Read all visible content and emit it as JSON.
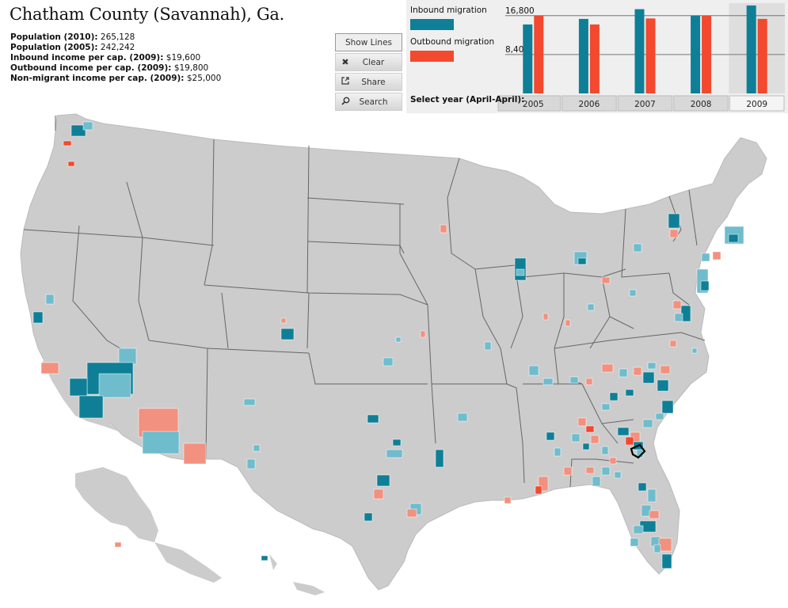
{
  "page": {
    "title": "Chatham County (Savannah), Ga."
  },
  "stats": [
    {
      "label": "Population (2010):",
      "value": "265,128"
    },
    {
      "label": "Population (2005):",
      "value": "242,242"
    },
    {
      "label": "Inbound income per cap. (2009):",
      "value": "$19,600"
    },
    {
      "label": "Outbound income per cap. (2009):",
      "value": "$19,800"
    },
    {
      "label": "Non-migrant income per cap. (2009):",
      "value": "$25,000"
    }
  ],
  "buttons": {
    "show_lines": "Show Lines",
    "clear": "Clear",
    "share": "Share",
    "search": "Search"
  },
  "legend": {
    "inbound": "Inbound migration",
    "outbound": "Outbound migration",
    "inbound_color": "#0e7f96",
    "outbound_color": "#f2492f"
  },
  "year_select": {
    "label": "Select year (April-April):",
    "selected": "2009"
  },
  "chart_data": {
    "type": "bar",
    "categories": [
      "2005",
      "2006",
      "2007",
      "2008",
      "2009"
    ],
    "series": [
      {
        "name": "Inbound migration",
        "values": [
          14900,
          16100,
          18200,
          16800,
          19000
        ]
      },
      {
        "name": "Outbound migration",
        "values": [
          16800,
          14900,
          16200,
          16800,
          16100
        ]
      }
    ],
    "yticks": [
      "16,800",
      "8,400"
    ],
    "ytick_values": [
      16800,
      8400
    ],
    "ylim": [
      0,
      19500
    ]
  },
  "map": {
    "highlight_color": "#0e7f96",
    "light_inbound_color": "#6fbccc",
    "light_outbound_color": "#f2917f",
    "land_color": "#cccccc",
    "border_color": "#ffffff",
    "state_border_color": "#666666"
  }
}
